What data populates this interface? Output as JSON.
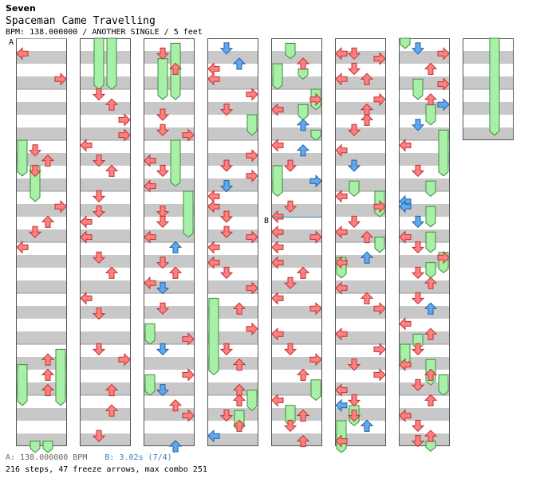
{
  "header": {
    "artist": "Seven",
    "title": "Spaceman Came Travelling",
    "info": "BPM: 138.000000 / ANOTHER SINGLE / 5 feet"
  },
  "markers": [
    {
      "label": "A",
      "column": 0,
      "measure": 0
    },
    {
      "label": "B",
      "column": 4,
      "measure": 3.5
    }
  ],
  "footer": {
    "bpm_text": "A: 138.000000 BPM",
    "stop_text": "B: 3.02s (7/4)",
    "stats": "216 steps, 47 freeze arrows, max combo 251"
  },
  "colors": {
    "red_arrow": "#ff8080",
    "blue_arrow": "#60a8f0",
    "freeze": "#a8f0a8",
    "band": "#c8c8c8",
    "blue_line": "#3a7fc0"
  },
  "chart_data": {
    "type": "stepchart",
    "columns": 8,
    "measures_per_column": 8,
    "measures_in_last_column": 2,
    "lanes": [
      "left",
      "down",
      "up",
      "right"
    ],
    "notes": [
      {
        "c": 0,
        "t": 0.3,
        "l": 0
      },
      {
        "c": 0,
        "t": 0.8,
        "l": 3
      },
      {
        "c": 1,
        "t": 1.1,
        "l": 1
      },
      {
        "c": 1,
        "t": 1.3,
        "l": 2
      },
      {
        "c": 1,
        "t": 1.6,
        "l": 3
      },
      {
        "c": 1,
        "t": 1.9,
        "l": 3
      },
      {
        "c": 2,
        "t": 0.3,
        "l": 1
      },
      {
        "c": 2,
        "t": 0.6,
        "l": 2
      },
      {
        "c": 2,
        "t": 1.5,
        "l": 1
      },
      {
        "c": 2,
        "t": 1.8,
        "l": 1
      },
      {
        "c": 2,
        "t": 1.9,
        "l": 3
      },
      {
        "c": 3,
        "t": 0.2,
        "l": 1,
        "b": 1
      },
      {
        "c": 3,
        "t": 0.5,
        "l": 2,
        "b": 1
      },
      {
        "c": 3,
        "t": 0.6,
        "l": 0
      },
      {
        "c": 3,
        "t": 0.8,
        "l": 0
      },
      {
        "c": 3,
        "t": 1.1,
        "l": 3
      },
      {
        "c": 3,
        "t": 1.4,
        "l": 1
      },
      {
        "c": 3,
        "t": 2.3,
        "l": 3
      },
      {
        "c": 3,
        "t": 2.5,
        "l": 1
      },
      {
        "c": 3,
        "t": 2.7,
        "l": 3
      },
      {
        "c": 4,
        "t": 0.5,
        "l": 2
      },
      {
        "c": 4,
        "t": 1.2,
        "l": 3
      },
      {
        "c": 4,
        "t": 1.4,
        "l": 0
      },
      {
        "c": 4,
        "t": 1.7,
        "l": 2,
        "b": 1
      },
      {
        "c": 4,
        "t": 2.1,
        "l": 0
      },
      {
        "c": 4,
        "t": 2.2,
        "l": 2,
        "b": 1
      },
      {
        "c": 4,
        "t": 2.5,
        "l": 1
      },
      {
        "c": 4,
        "t": 2.8,
        "l": 3,
        "b": 1
      },
      {
        "c": 5,
        "t": 0.3,
        "l": 0
      },
      {
        "c": 5,
        "t": 0.3,
        "l": 1
      },
      {
        "c": 5,
        "t": 0.4,
        "l": 3
      },
      {
        "c": 5,
        "t": 0.6,
        "l": 1
      },
      {
        "c": 5,
        "t": 0.8,
        "l": 0
      },
      {
        "c": 5,
        "t": 0.8,
        "l": 2
      },
      {
        "c": 5,
        "t": 1.2,
        "l": 3
      },
      {
        "c": 5,
        "t": 1.4,
        "l": 2
      },
      {
        "c": 5,
        "t": 1.6,
        "l": 2
      },
      {
        "c": 5,
        "t": 1.8,
        "l": 1
      },
      {
        "c": 5,
        "t": 2.2,
        "l": 0
      },
      {
        "c": 5,
        "t": 2.5,
        "l": 1,
        "b": 1
      },
      {
        "c": 6,
        "t": 0.2,
        "l": 1,
        "b": 1
      },
      {
        "c": 6,
        "t": 0.3,
        "l": 3
      },
      {
        "c": 6,
        "t": 0.6,
        "l": 2
      },
      {
        "c": 6,
        "t": 0.9,
        "l": 3
      },
      {
        "c": 6,
        "t": 1.2,
        "l": 2
      },
      {
        "c": 6,
        "t": 1.3,
        "l": 3,
        "b": 1
      },
      {
        "c": 6,
        "t": 1.7,
        "l": 1,
        "b": 1
      },
      {
        "c": 6,
        "t": 2.1,
        "l": 0
      },
      {
        "c": 6,
        "t": 2.6,
        "l": 1
      },
      {
        "c": 6,
        "t": 3.2,
        "l": 0,
        "b": 1
      },
      {
        "c": 0,
        "t": 2.2,
        "l": 1
      },
      {
        "c": 0,
        "t": 2.4,
        "l": 2
      },
      {
        "c": 0,
        "t": 2.6,
        "l": 1
      },
      {
        "c": 0,
        "t": 3.3,
        "l": 3
      },
      {
        "c": 0,
        "t": 3.6,
        "l": 2
      },
      {
        "c": 0,
        "t": 3.8,
        "l": 1
      },
      {
        "c": 0,
        "t": 4.1,
        "l": 0
      },
      {
        "c": 0,
        "t": 6.3,
        "l": 2
      },
      {
        "c": 0,
        "t": 6.6,
        "l": 2
      },
      {
        "c": 0,
        "t": 6.9,
        "l": 2
      },
      {
        "c": 1,
        "t": 2.1,
        "l": 0
      },
      {
        "c": 1,
        "t": 2.4,
        "l": 1
      },
      {
        "c": 1,
        "t": 2.6,
        "l": 2
      },
      {
        "c": 1,
        "t": 3.1,
        "l": 1
      },
      {
        "c": 1,
        "t": 3.4,
        "l": 1
      },
      {
        "c": 1,
        "t": 3.6,
        "l": 0
      },
      {
        "c": 1,
        "t": 3.9,
        "l": 0
      },
      {
        "c": 1,
        "t": 4.3,
        "l": 1
      },
      {
        "c": 1,
        "t": 4.6,
        "l": 2
      },
      {
        "c": 1,
        "t": 5.1,
        "l": 0
      },
      {
        "c": 1,
        "t": 5.4,
        "l": 1
      },
      {
        "c": 1,
        "t": 6.1,
        "l": 1
      },
      {
        "c": 1,
        "t": 6.3,
        "l": 3
      },
      {
        "c": 1,
        "t": 6.9,
        "l": 2
      },
      {
        "c": 1,
        "t": 7.3,
        "l": 2
      },
      {
        "c": 1,
        "t": 7.8,
        "l": 1
      },
      {
        "c": 2,
        "t": 2.4,
        "l": 0
      },
      {
        "c": 2,
        "t": 2.6,
        "l": 1
      },
      {
        "c": 2,
        "t": 2.9,
        "l": 0
      },
      {
        "c": 2,
        "t": 3.4,
        "l": 1
      },
      {
        "c": 2,
        "t": 3.6,
        "l": 1
      },
      {
        "c": 2,
        "t": 3.9,
        "l": 0
      },
      {
        "c": 2,
        "t": 4.1,
        "l": 2,
        "b": 1
      },
      {
        "c": 2,
        "t": 4.4,
        "l": 1
      },
      {
        "c": 2,
        "t": 4.6,
        "l": 2
      },
      {
        "c": 2,
        "t": 4.8,
        "l": 0
      },
      {
        "c": 2,
        "t": 4.9,
        "l": 1,
        "b": 1
      },
      {
        "c": 2,
        "t": 5.3,
        "l": 1
      },
      {
        "c": 2,
        "t": 5.9,
        "l": 3
      },
      {
        "c": 2,
        "t": 6.1,
        "l": 1,
        "b": 1
      },
      {
        "c": 2,
        "t": 6.6,
        "l": 3
      },
      {
        "c": 2,
        "t": 6.9,
        "l": 1,
        "b": 1
      },
      {
        "c": 2,
        "t": 7.2,
        "l": 2
      },
      {
        "c": 2,
        "t": 7.4,
        "l": 3
      },
      {
        "c": 2,
        "t": 8.0,
        "l": 2,
        "b": 1
      },
      {
        "c": 3,
        "t": 2.9,
        "l": 1,
        "b": 1
      },
      {
        "c": 3,
        "t": 3.1,
        "l": 0
      },
      {
        "c": 3,
        "t": 3.3,
        "l": 0
      },
      {
        "c": 3,
        "t": 3.5,
        "l": 1
      },
      {
        "c": 3,
        "t": 3.8,
        "l": 1
      },
      {
        "c": 3,
        "t": 3.9,
        "l": 3
      },
      {
        "c": 3,
        "t": 4.1,
        "l": 0
      },
      {
        "c": 3,
        "t": 4.4,
        "l": 0
      },
      {
        "c": 3,
        "t": 4.6,
        "l": 1
      },
      {
        "c": 3,
        "t": 4.9,
        "l": 3
      },
      {
        "c": 3,
        "t": 5.3,
        "l": 2
      },
      {
        "c": 3,
        "t": 5.7,
        "l": 3
      },
      {
        "c": 3,
        "t": 6.1,
        "l": 1
      },
      {
        "c": 3,
        "t": 6.4,
        "l": 2
      },
      {
        "c": 3,
        "t": 6.9,
        "l": 2
      },
      {
        "c": 3,
        "t": 7.1,
        "l": 2
      },
      {
        "c": 3,
        "t": 7.4,
        "l": 1
      },
      {
        "c": 3,
        "t": 7.6,
        "l": 2
      },
      {
        "c": 3,
        "t": 7.8,
        "l": 0,
        "b": 1
      },
      {
        "c": 4,
        "t": 3.3,
        "l": 1
      },
      {
        "c": 4,
        "t": 3.5,
        "l": 0
      },
      {
        "c": 4,
        "t": 3.8,
        "l": 0
      },
      {
        "c": 4,
        "t": 3.9,
        "l": 3
      },
      {
        "c": 4,
        "t": 4.1,
        "l": 0
      },
      {
        "c": 4,
        "t": 4.4,
        "l": 0
      },
      {
        "c": 4,
        "t": 4.6,
        "l": 2
      },
      {
        "c": 4,
        "t": 4.8,
        "l": 1
      },
      {
        "c": 4,
        "t": 5.1,
        "l": 0
      },
      {
        "c": 4,
        "t": 5.3,
        "l": 3
      },
      {
        "c": 4,
        "t": 5.8,
        "l": 0
      },
      {
        "c": 4,
        "t": 6.1,
        "l": 1
      },
      {
        "c": 4,
        "t": 6.3,
        "l": 3
      },
      {
        "c": 4,
        "t": 6.6,
        "l": 2
      },
      {
        "c": 4,
        "t": 7.1,
        "l": 0
      },
      {
        "c": 4,
        "t": 7.4,
        "l": 2
      },
      {
        "c": 4,
        "t": 7.6,
        "l": 1
      },
      {
        "c": 4,
        "t": 7.9,
        "l": 2
      },
      {
        "c": 5,
        "t": 3.1,
        "l": 0
      },
      {
        "c": 5,
        "t": 3.3,
        "l": 3
      },
      {
        "c": 5,
        "t": 3.6,
        "l": 1
      },
      {
        "c": 5,
        "t": 3.8,
        "l": 0
      },
      {
        "c": 5,
        "t": 3.9,
        "l": 2
      },
      {
        "c": 5,
        "t": 4.3,
        "l": 2,
        "b": 1
      },
      {
        "c": 5,
        "t": 4.4,
        "l": 0
      },
      {
        "c": 5,
        "t": 4.9,
        "l": 0
      },
      {
        "c": 5,
        "t": 5.1,
        "l": 2
      },
      {
        "c": 5,
        "t": 5.3,
        "l": 3
      },
      {
        "c": 5,
        "t": 5.8,
        "l": 0
      },
      {
        "c": 5,
        "t": 6.1,
        "l": 3
      },
      {
        "c": 5,
        "t": 6.4,
        "l": 1
      },
      {
        "c": 5,
        "t": 6.6,
        "l": 3
      },
      {
        "c": 5,
        "t": 6.9,
        "l": 0
      },
      {
        "c": 5,
        "t": 7.1,
        "l": 1
      },
      {
        "c": 5,
        "t": 7.2,
        "l": 0,
        "b": 1
      },
      {
        "c": 5,
        "t": 7.4,
        "l": 1
      },
      {
        "c": 5,
        "t": 7.6,
        "l": 2,
        "b": 1
      },
      {
        "c": 5,
        "t": 7.9,
        "l": 0
      },
      {
        "c": 6,
        "t": 3.3,
        "l": 0,
        "b": 1
      },
      {
        "c": 6,
        "t": 3.6,
        "l": 1,
        "b": 1
      },
      {
        "c": 6,
        "t": 3.9,
        "l": 0
      },
      {
        "c": 6,
        "t": 4.1,
        "l": 1
      },
      {
        "c": 6,
        "t": 4.3,
        "l": 3
      },
      {
        "c": 6,
        "t": 4.6,
        "l": 1
      },
      {
        "c": 6,
        "t": 4.8,
        "l": 2
      },
      {
        "c": 6,
        "t": 5.1,
        "l": 1
      },
      {
        "c": 6,
        "t": 5.3,
        "l": 2,
        "b": 1
      },
      {
        "c": 6,
        "t": 5.6,
        "l": 0
      },
      {
        "c": 6,
        "t": 5.8,
        "l": 2
      },
      {
        "c": 6,
        "t": 6.1,
        "l": 1
      },
      {
        "c": 6,
        "t": 6.4,
        "l": 0
      },
      {
        "c": 6,
        "t": 6.6,
        "l": 2
      },
      {
        "c": 6,
        "t": 6.8,
        "l": 1
      },
      {
        "c": 6,
        "t": 7.1,
        "l": 2
      },
      {
        "c": 6,
        "t": 7.4,
        "l": 0
      },
      {
        "c": 6,
        "t": 7.6,
        "l": 1
      },
      {
        "c": 6,
        "t": 7.8,
        "l": 2
      },
      {
        "c": 6,
        "t": 7.9,
        "l": 1
      }
    ],
    "freezes": [
      {
        "c": 0,
        "l": 0,
        "t": 2.0,
        "e": 2.7
      },
      {
        "c": 0,
        "l": 1,
        "t": 2.5,
        "e": 3.2
      },
      {
        "c": 0,
        "l": 0,
        "t": 6.4,
        "e": 7.2
      },
      {
        "c": 0,
        "l": 3,
        "t": 6.1,
        "e": 7.2
      },
      {
        "c": 0,
        "l": 1,
        "t": 7.9,
        "e": 9.0
      },
      {
        "c": 0,
        "l": 2,
        "t": 7.9,
        "e": 9.0
      },
      {
        "c": 1,
        "l": 1,
        "t": 0.0,
        "e": 1.0
      },
      {
        "c": 1,
        "l": 2,
        "t": 0.0,
        "e": 1.0
      },
      {
        "c": 2,
        "l": 1,
        "t": 0.4,
        "e": 1.2
      },
      {
        "c": 2,
        "l": 2,
        "t": 0.1,
        "e": 1.2
      },
      {
        "c": 2,
        "l": 2,
        "t": 2.0,
        "e": 2.9
      },
      {
        "c": 2,
        "l": 3,
        "t": 3.0,
        "e": 3.9
      },
      {
        "c": 2,
        "l": 0,
        "t": 5.6,
        "e": 6.0
      },
      {
        "c": 2,
        "l": 0,
        "t": 6.6,
        "e": 7.0
      },
      {
        "c": 3,
        "l": 3,
        "t": 1.5,
        "e": 1.9
      },
      {
        "c": 3,
        "l": 0,
        "t": 5.1,
        "e": 6.6
      },
      {
        "c": 3,
        "l": 3,
        "t": 6.9,
        "e": 7.3
      },
      {
        "c": 3,
        "l": 2,
        "t": 7.3,
        "e": 7.7
      },
      {
        "c": 4,
        "l": 1,
        "t": 0.1,
        "e": 0.4
      },
      {
        "c": 4,
        "l": 0,
        "t": 0.5,
        "e": 1.0
      },
      {
        "c": 4,
        "l": 2,
        "t": 0.6,
        "e": 0.8
      },
      {
        "c": 4,
        "l": 3,
        "t": 1.0,
        "e": 1.4
      },
      {
        "c": 4,
        "l": 2,
        "t": 1.3,
        "e": 1.6
      },
      {
        "c": 4,
        "l": 3,
        "t": 1.8,
        "e": 2.0
      },
      {
        "c": 4,
        "l": 0,
        "t": 2.5,
        "e": 3.1
      },
      {
        "c": 4,
        "l": 3,
        "t": 6.7,
        "e": 7.1
      },
      {
        "c": 4,
        "l": 1,
        "t": 7.2,
        "e": 7.6
      },
      {
        "c": 5,
        "l": 1,
        "t": 2.8,
        "e": 3.1
      },
      {
        "c": 5,
        "l": 3,
        "t": 3.0,
        "e": 3.5
      },
      {
        "c": 5,
        "l": 3,
        "t": 3.9,
        "e": 4.2
      },
      {
        "c": 5,
        "l": 0,
        "t": 4.3,
        "e": 4.7
      },
      {
        "c": 5,
        "l": 1,
        "t": 7.2,
        "e": 7.6
      },
      {
        "c": 5,
        "l": 0,
        "t": 7.5,
        "e": 8.0
      },
      {
        "c": 5,
        "l": 0,
        "t": 7.9,
        "e": 8.2
      },
      {
        "c": 6,
        "l": 0,
        "t": 0.0,
        "e": 0.2
      },
      {
        "c": 6,
        "l": 1,
        "t": 0.8,
        "e": 1.2
      },
      {
        "c": 6,
        "l": 2,
        "t": 1.3,
        "e": 1.7
      },
      {
        "c": 6,
        "l": 3,
        "t": 1.8,
        "e": 2.7
      },
      {
        "c": 6,
        "l": 2,
        "t": 2.8,
        "e": 3.1
      },
      {
        "c": 6,
        "l": 2,
        "t": 3.3,
        "e": 3.7
      },
      {
        "c": 6,
        "l": 2,
        "t": 3.8,
        "e": 4.2
      },
      {
        "c": 6,
        "l": 3,
        "t": 4.2,
        "e": 4.6
      },
      {
        "c": 6,
        "l": 2,
        "t": 4.4,
        "e": 4.7
      },
      {
        "c": 6,
        "l": 1,
        "t": 5.8,
        "e": 6.1
      },
      {
        "c": 6,
        "l": 0,
        "t": 6.0,
        "e": 6.4
      },
      {
        "c": 6,
        "l": 2,
        "t": 6.3,
        "e": 6.8
      },
      {
        "c": 6,
        "l": 3,
        "t": 6.6,
        "e": 7.0
      },
      {
        "c": 6,
        "l": 2,
        "t": 7.9,
        "e": 8.1
      },
      {
        "c": 7,
        "l": 2,
        "t": 0.0,
        "e": 1.9
      }
    ]
  }
}
